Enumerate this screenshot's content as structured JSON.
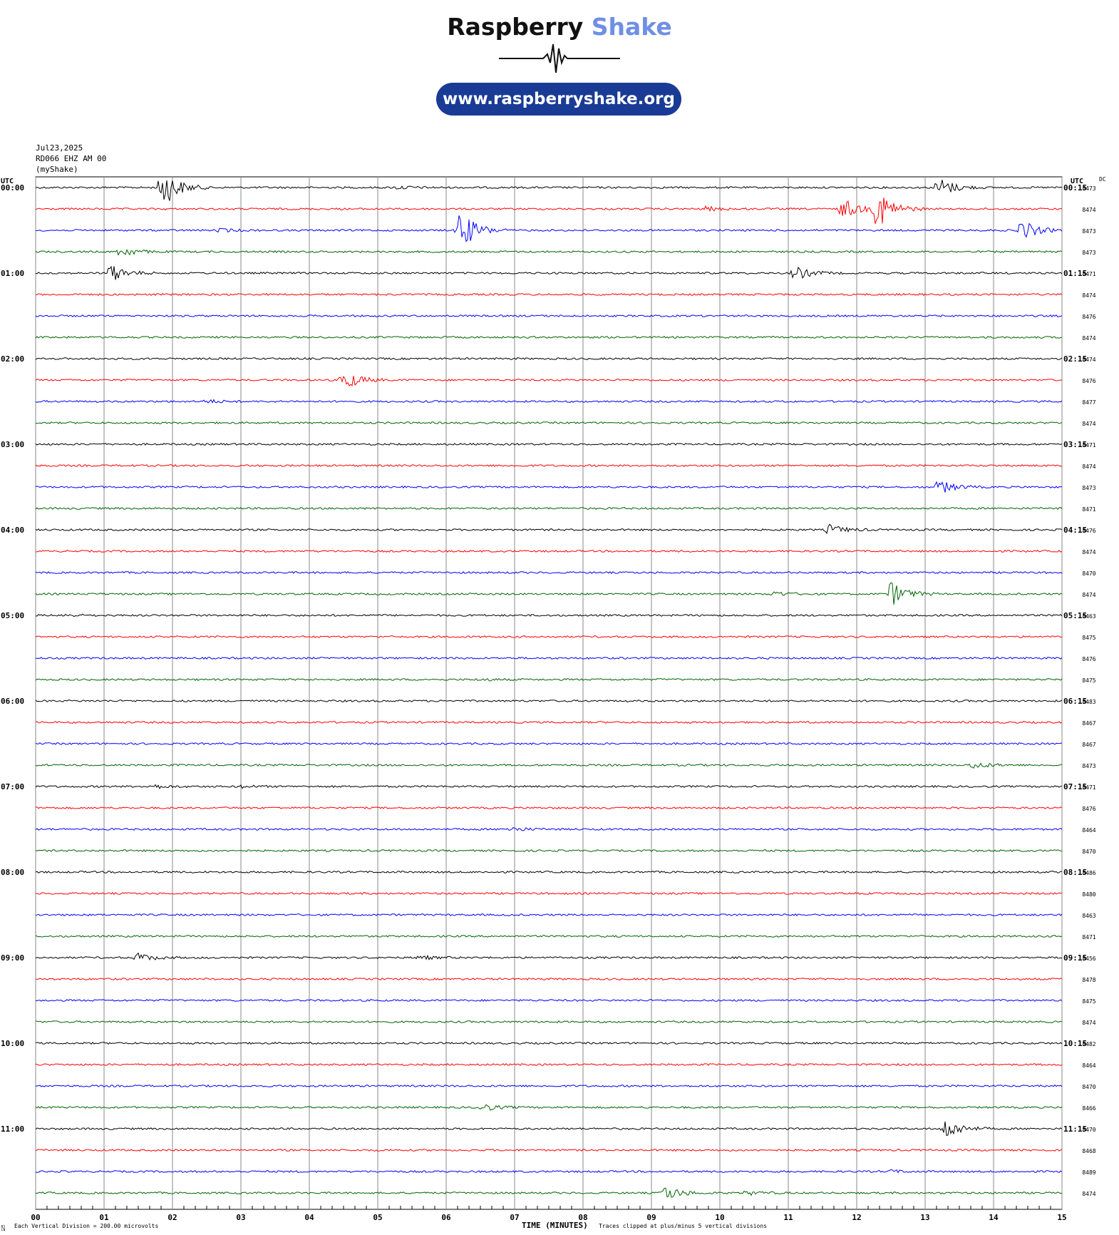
{
  "logo": {
    "word1": "Raspberry",
    "word2": "Shake",
    "url": "www.raspberryshake.org",
    "colors": {
      "word2": "#6f8fe6",
      "pill": "#1a3b95"
    }
  },
  "station": {
    "date": "Jul23,2025",
    "channel": "RD066 EHZ AM 00",
    "name": "(myShake)"
  },
  "chart_data": {
    "type": "line",
    "subtype": "helicorder",
    "left_header": "UTC",
    "right_header": "UTC",
    "dc_header": "DC",
    "xlabel": "TIME (MINUTES)",
    "xlim": [
      0,
      15
    ],
    "x_ticks": [
      "00",
      "01",
      "02",
      "03",
      "04",
      "05",
      "06",
      "07",
      "08",
      "09",
      "10",
      "11",
      "12",
      "13",
      "14",
      "15"
    ],
    "rows_per_hour": 4,
    "row_duration_minutes": 15,
    "grid": true,
    "trace_colors": [
      "#000000",
      "#ff0000",
      "#0000ff",
      "#006400"
    ],
    "left_labels": [
      "00:00",
      "01:00",
      "02:00",
      "03:00",
      "04:00",
      "05:00",
      "06:00",
      "07:00",
      "08:00",
      "09:00",
      "10:00",
      "11:00"
    ],
    "right_labels": [
      "00:15",
      "01:15",
      "02:15",
      "03:15",
      "04:15",
      "05:15",
      "06:15",
      "07:15",
      "08:15",
      "09:15",
      "10:15",
      "11:15"
    ],
    "dc_offsets": [
      8473,
      8474,
      8473,
      8473,
      8471,
      8474,
      8476,
      8474,
      8474,
      8476,
      8477,
      8474,
      8471,
      8474,
      8473,
      8471,
      8476,
      8474,
      8470,
      8474,
      8463,
      8475,
      8476,
      8475,
      8483,
      8467,
      8467,
      8473,
      8471,
      8476,
      8464,
      8470,
      8486,
      8480,
      8463,
      8471,
      8456,
      8478,
      8475,
      8474,
      8482,
      8464,
      8470,
      8466,
      8470,
      8468,
      8489,
      8474
    ],
    "events": [
      {
        "row": 0,
        "minute": 1.85,
        "amplitude": 5
      },
      {
        "row": 0,
        "minute": 5.3,
        "amplitude": 0.4
      },
      {
        "row": 0,
        "minute": 13.2,
        "amplitude": 2.5
      },
      {
        "row": 1,
        "minute": 9.8,
        "amplitude": 0.5
      },
      {
        "row": 1,
        "minute": 11.8,
        "amplitude": 2.5
      },
      {
        "row": 1,
        "minute": 12.3,
        "amplitude": 5
      },
      {
        "row": 2,
        "minute": 6.2,
        "amplitude": 5
      },
      {
        "row": 2,
        "minute": 2.7,
        "amplitude": 0.4
      },
      {
        "row": 2,
        "minute": 14.4,
        "amplitude": 2.5
      },
      {
        "row": 3,
        "minute": 1.25,
        "amplitude": 1.3
      },
      {
        "row": 4,
        "minute": 1.1,
        "amplitude": 2
      },
      {
        "row": 4,
        "minute": 11.1,
        "amplitude": 1.6
      },
      {
        "row": 9,
        "minute": 4.5,
        "amplitude": 2.5
      },
      {
        "row": 10,
        "minute": 2.5,
        "amplitude": 0.4
      },
      {
        "row": 14,
        "minute": 13.2,
        "amplitude": 1.7
      },
      {
        "row": 16,
        "minute": 11.6,
        "amplitude": 1.2
      },
      {
        "row": 19,
        "minute": 12.5,
        "amplitude": 3
      },
      {
        "row": 19,
        "minute": 10.8,
        "amplitude": 0.6
      },
      {
        "row": 20,
        "minute": 0.4,
        "amplitude": 0.3
      },
      {
        "row": 23,
        "minute": 6.5,
        "amplitude": 0.3
      },
      {
        "row": 27,
        "minute": 13.7,
        "amplitude": 0.8
      },
      {
        "row": 28,
        "minute": 1.7,
        "amplitude": 0.5
      },
      {
        "row": 28,
        "minute": 3.0,
        "amplitude": 0.3
      },
      {
        "row": 30,
        "minute": 6.95,
        "amplitude": 0.5
      },
      {
        "row": 36,
        "minute": 1.5,
        "amplitude": 1
      },
      {
        "row": 36,
        "minute": 5.6,
        "amplitude": 0.5
      },
      {
        "row": 43,
        "minute": 6.5,
        "amplitude": 1
      },
      {
        "row": 44,
        "minute": 13.3,
        "amplitude": 2.5
      },
      {
        "row": 46,
        "minute": 12.5,
        "amplitude": 0.3
      },
      {
        "row": 47,
        "minute": 9.2,
        "amplitude": 1.8
      },
      {
        "row": 47,
        "minute": 10.4,
        "amplitude": 0.5
      }
    ],
    "footer_left_prefix": "⍂",
    "footer_left": "Each Vertical Division =  200.00 microvolts",
    "footer_right": "Traces clipped at plus/minus 5 vertical divisions"
  }
}
